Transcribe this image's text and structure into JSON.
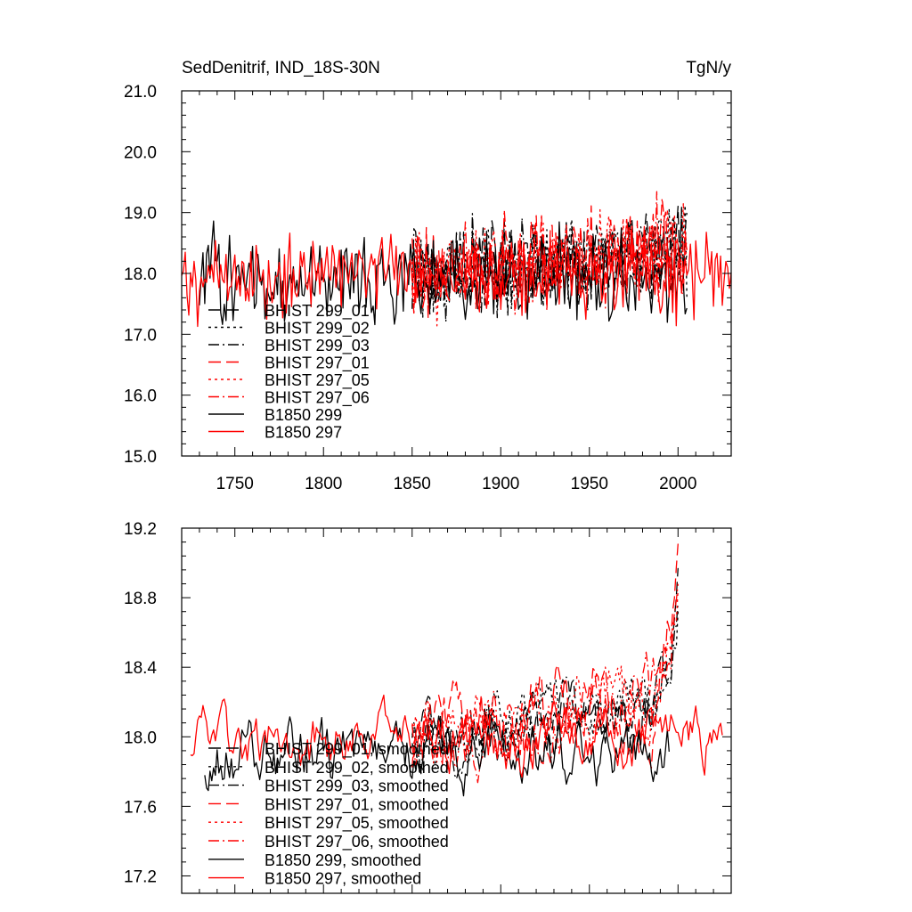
{
  "colors": {
    "black": "#000000",
    "red": "#ff0000"
  },
  "chart_data": [
    {
      "type": "line",
      "title": "SedDenitrif, IND_18S-30N",
      "units": "TgN/y",
      "xlim": [
        1720,
        2030
      ],
      "ylim": [
        15.0,
        21.0
      ],
      "x_ticks": [
        1750,
        1800,
        1850,
        1900,
        1950,
        2000
      ],
      "x_tick_labels": [
        "1750",
        "1800",
        "1850",
        "1900",
        "1950",
        "2000"
      ],
      "y_ticks": [
        15.0,
        16.0,
        17.0,
        18.0,
        19.0,
        20.0,
        21.0
      ],
      "y_tick_labels": [
        "15.0",
        "16.0",
        "17.0",
        "18.0",
        "19.0",
        "20.0",
        "21.0"
      ],
      "legend_placement": "lower-left",
      "series": [
        {
          "name": "BHIST 299_01",
          "color": "#000000",
          "dash": "long-dash",
          "x_start": 1850,
          "x_end": 2005,
          "mean": 18.0,
          "amp": 0.65,
          "trend": 0.4,
          "seed": 11
        },
        {
          "name": "BHIST 299_02",
          "color": "#000000",
          "dash": "dot",
          "x_start": 1850,
          "x_end": 2005,
          "mean": 18.0,
          "amp": 0.65,
          "trend": 0.4,
          "seed": 12
        },
        {
          "name": "BHIST 299_03",
          "color": "#000000",
          "dash": "dash-dot",
          "x_start": 1850,
          "x_end": 2005,
          "mean": 18.0,
          "amp": 0.65,
          "trend": 0.4,
          "seed": 13
        },
        {
          "name": "BHIST 297_01",
          "color": "#ff0000",
          "dash": "long-dash",
          "x_start": 1850,
          "x_end": 2005,
          "mean": 18.0,
          "amp": 0.65,
          "trend": 0.45,
          "seed": 14
        },
        {
          "name": "BHIST 297_05",
          "color": "#ff0000",
          "dash": "dot",
          "x_start": 1850,
          "x_end": 2005,
          "mean": 18.0,
          "amp": 0.65,
          "trend": 0.45,
          "seed": 15
        },
        {
          "name": "BHIST 297_06",
          "color": "#ff0000",
          "dash": "dash-dot",
          "x_start": 1850,
          "x_end": 2005,
          "mean": 18.0,
          "amp": 0.65,
          "trend": 0.45,
          "seed": 16
        },
        {
          "name": "B1850 299",
          "color": "#000000",
          "dash": "solid",
          "x_start": 1730,
          "x_end": 2005,
          "mean": 17.9,
          "amp": 0.65,
          "trend": 0.0,
          "seed": 17
        },
        {
          "name": "B1850 297",
          "color": "#ff0000",
          "dash": "solid",
          "x_start": 1720,
          "x_end": 2030,
          "mean": 18.0,
          "amp": 0.6,
          "trend": 0.0,
          "seed": 18
        }
      ]
    },
    {
      "type": "line",
      "title": "",
      "xlim": [
        1720,
        2030
      ],
      "ylim": [
        17.1,
        19.2
      ],
      "x_ticks": [
        1750,
        1800,
        1850,
        1900,
        1950,
        2000
      ],
      "y_ticks": [
        17.2,
        17.6,
        18.0,
        18.4,
        18.8,
        19.2
      ],
      "y_tick_labels": [
        "17.2",
        "17.6",
        "18.0",
        "18.4",
        "18.8",
        "19.2"
      ],
      "legend_placement": "lower-left",
      "series": [
        {
          "name": "BHIST 299_01, smoothed",
          "color": "#000000",
          "dash": "long-dash",
          "x_start": 1850,
          "x_end": 2000,
          "mean": 17.92,
          "amp": 0.15,
          "trend": 0.3,
          "end_rise": 0.65,
          "seed": 21
        },
        {
          "name": "BHIST 299_02, smoothed",
          "color": "#000000",
          "dash": "dot",
          "x_start": 1850,
          "x_end": 2000,
          "mean": 17.95,
          "amp": 0.16,
          "trend": 0.3,
          "end_rise": 0.55,
          "seed": 22
        },
        {
          "name": "BHIST 299_03, smoothed",
          "color": "#000000",
          "dash": "dash-dot",
          "x_start": 1850,
          "x_end": 2000,
          "mean": 17.92,
          "amp": 0.15,
          "trend": 0.3,
          "end_rise": 0.5,
          "seed": 23
        },
        {
          "name": "BHIST 297_01, smoothed",
          "color": "#ff0000",
          "dash": "long-dash",
          "x_start": 1850,
          "x_end": 2000,
          "mean": 17.95,
          "amp": 0.2,
          "trend": 0.3,
          "end_rise": 0.75,
          "seed": 24
        },
        {
          "name": "BHIST 297_05, smoothed",
          "color": "#ff0000",
          "dash": "dot",
          "x_start": 1850,
          "x_end": 2000,
          "mean": 17.95,
          "amp": 0.18,
          "trend": 0.3,
          "end_rise": 0.7,
          "seed": 25
        },
        {
          "name": "BHIST 297_06, smoothed",
          "color": "#ff0000",
          "dash": "dash-dot",
          "x_start": 1850,
          "x_end": 2000,
          "mean": 17.95,
          "amp": 0.18,
          "trend": 0.3,
          "end_rise": 0.6,
          "seed": 26
        },
        {
          "name": "B1850 299, smoothed",
          "color": "#000000",
          "dash": "solid",
          "x_start": 1733,
          "x_end": 1995,
          "mean": 17.88,
          "amp": 0.17,
          "trend": 0.0,
          "seed": 27
        },
        {
          "name": "B1850 297, smoothed",
          "color": "#ff0000",
          "dash": "solid",
          "x_start": 1725,
          "x_end": 2025,
          "mean": 17.97,
          "amp": 0.15,
          "trend": 0.0,
          "seed": 28
        }
      ]
    }
  ]
}
